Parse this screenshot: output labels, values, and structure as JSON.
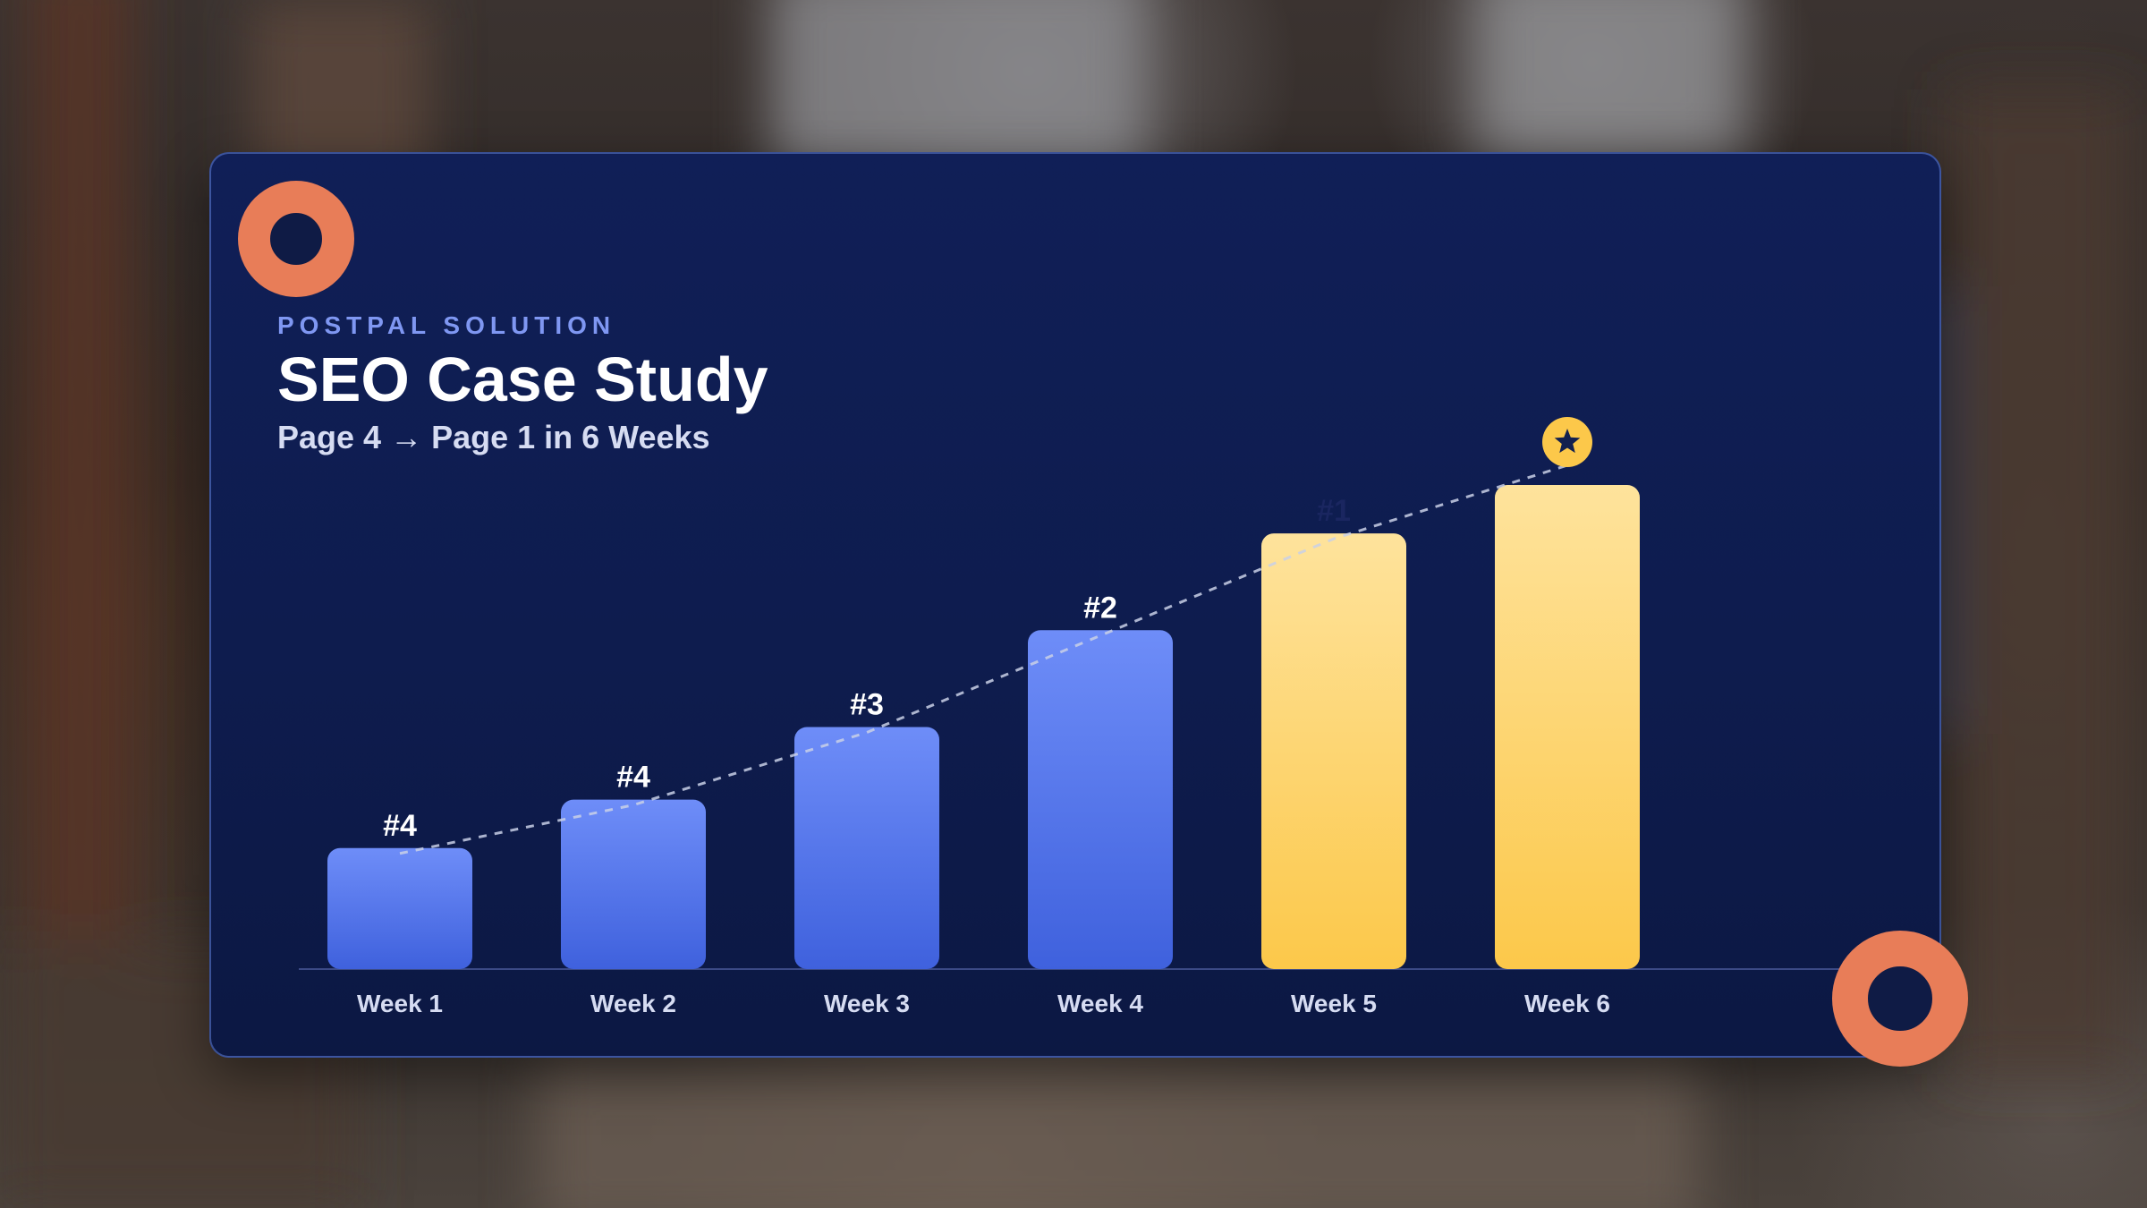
{
  "header": {
    "eyebrow": "POSTPAL SOLUTION",
    "title": "SEO Case Study",
    "subtitle": "Page 4 → Page 1 in 6 Weeks"
  },
  "chart_data": {
    "type": "bar",
    "categories": [
      "Week 1",
      "Week 2",
      "Week 3",
      "Week 4",
      "Week 5",
      "Week 6"
    ],
    "values": [
      1,
      1.4,
      2,
      2.8,
      3.6,
      4
    ],
    "labels": [
      "#4",
      "#4",
      "#3",
      "#2",
      "#1",
      ""
    ],
    "highlight": [
      false,
      false,
      false,
      false,
      true,
      true
    ],
    "trend_line": true,
    "marker": "star-icon",
    "colors": {
      "bar": "#5b7df5",
      "bar_highlight": "#fdd16a",
      "marker": "#fcc84a",
      "label": "#ffffff",
      "category_label": "#d6dcf2",
      "trend": "#c9d0e6"
    }
  }
}
